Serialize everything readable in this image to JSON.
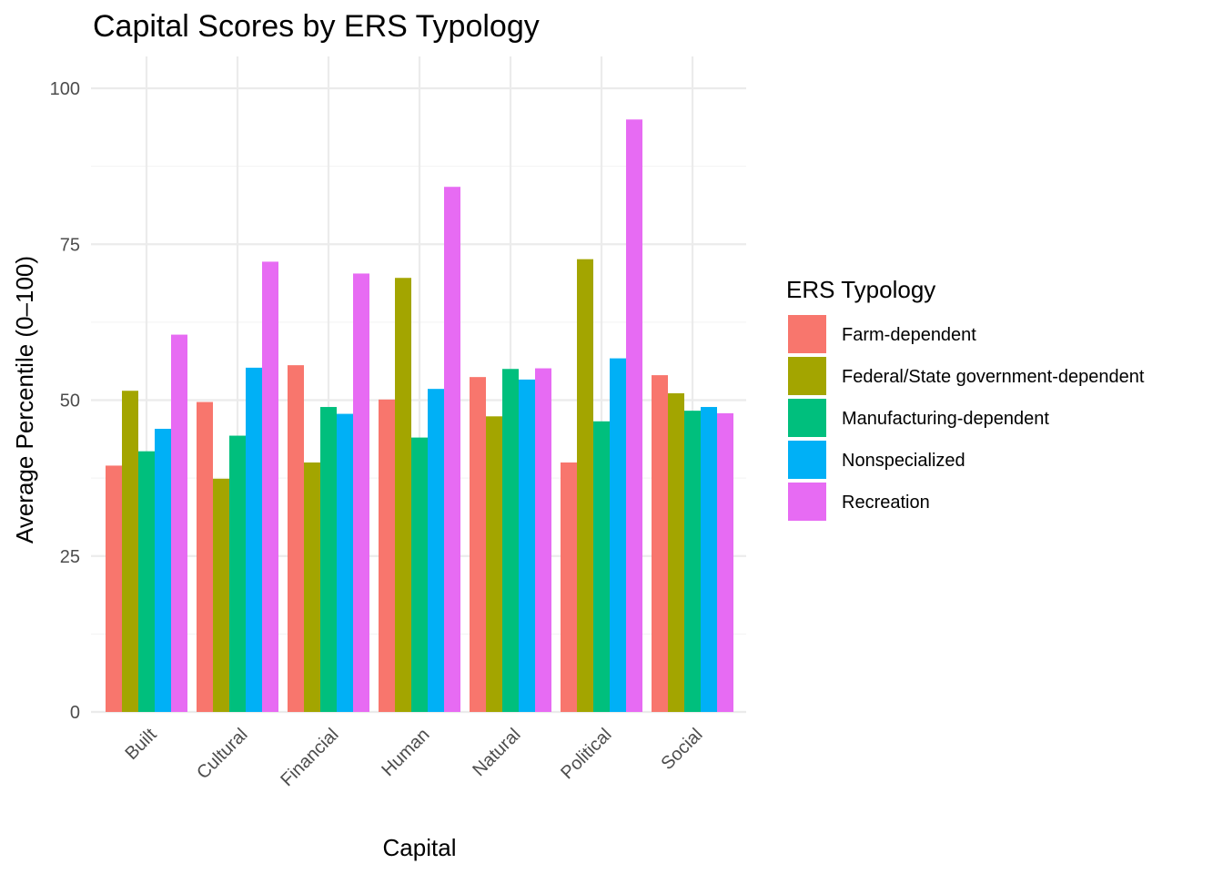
{
  "chart_data": {
    "type": "bar",
    "title": "Capital Scores by ERS Typology",
    "xlabel": "Capital",
    "ylabel": "Average Percentile (0–100)",
    "categories": [
      "Built",
      "Cultural",
      "Financial",
      "Human",
      "Natural",
      "Political",
      "Social"
    ],
    "ylim": [
      0,
      100
    ],
    "yticks": [
      0,
      25,
      50,
      75,
      100
    ],
    "grid": true,
    "legend_title": "ERS Typology",
    "legend_position": "right",
    "series": [
      {
        "name": "Farm-dependent",
        "color": "#F8766D",
        "values": [
          39.5,
          49.7,
          55.6,
          50.1,
          53.7,
          40.0,
          54.0
        ]
      },
      {
        "name": "Federal/State government-dependent",
        "color": "#A3A500",
        "values": [
          51.5,
          37.4,
          40.0,
          69.6,
          47.4,
          72.6,
          51.1
        ]
      },
      {
        "name": "Manufacturing-dependent",
        "color": "#00BF7D",
        "values": [
          41.8,
          44.3,
          48.9,
          44.0,
          55.0,
          46.6,
          48.3
        ]
      },
      {
        "name": "Nonspecialized",
        "color": "#00B0F6",
        "values": [
          45.4,
          55.2,
          47.8,
          51.8,
          53.3,
          56.7,
          48.9
        ]
      },
      {
        "name": "Recreation",
        "color": "#E76BF3",
        "values": [
          60.5,
          72.2,
          70.3,
          84.2,
          55.1,
          95.0,
          47.9
        ]
      }
    ]
  }
}
